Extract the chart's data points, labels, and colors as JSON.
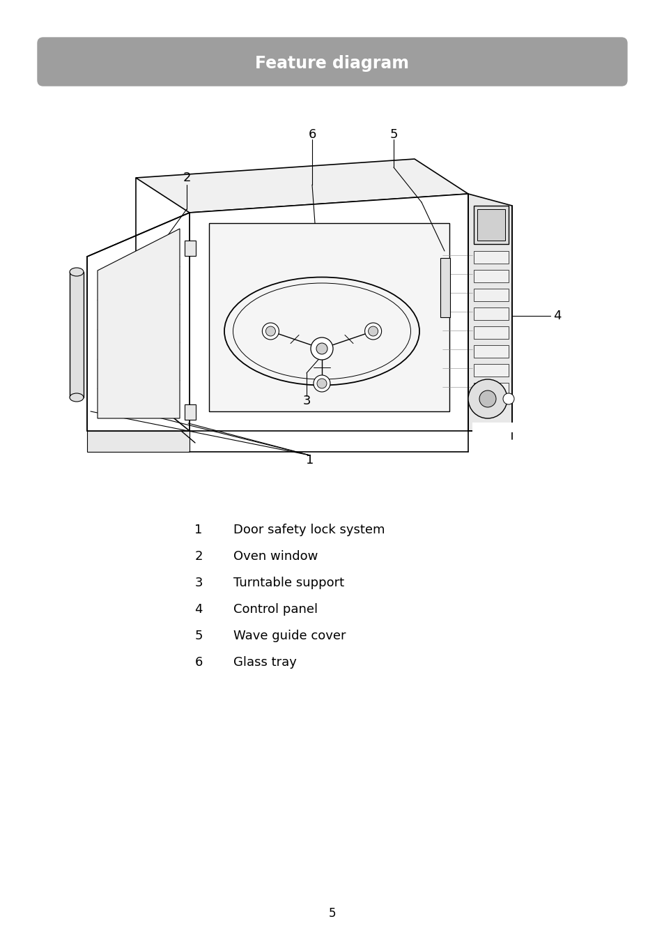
{
  "title": "Feature diagram",
  "title_bg_color": "#9E9E9E",
  "title_text_color": "#FFFFFF",
  "title_fontsize": 17,
  "background_color": "#FFFFFF",
  "legend_items": [
    {
      "number": "1",
      "text": "Door safety lock system"
    },
    {
      "number": "2",
      "text": "Oven window"
    },
    {
      "number": "3",
      "text": "Turntable support"
    },
    {
      "number": "4",
      "text": "Control panel"
    },
    {
      "number": "5",
      "text": "Wave guide cover"
    },
    {
      "number": "6",
      "text": "Glass tray"
    }
  ],
  "page_number": "5",
  "fig_width": 9.54,
  "fig_height": 13.51,
  "dpi": 100
}
